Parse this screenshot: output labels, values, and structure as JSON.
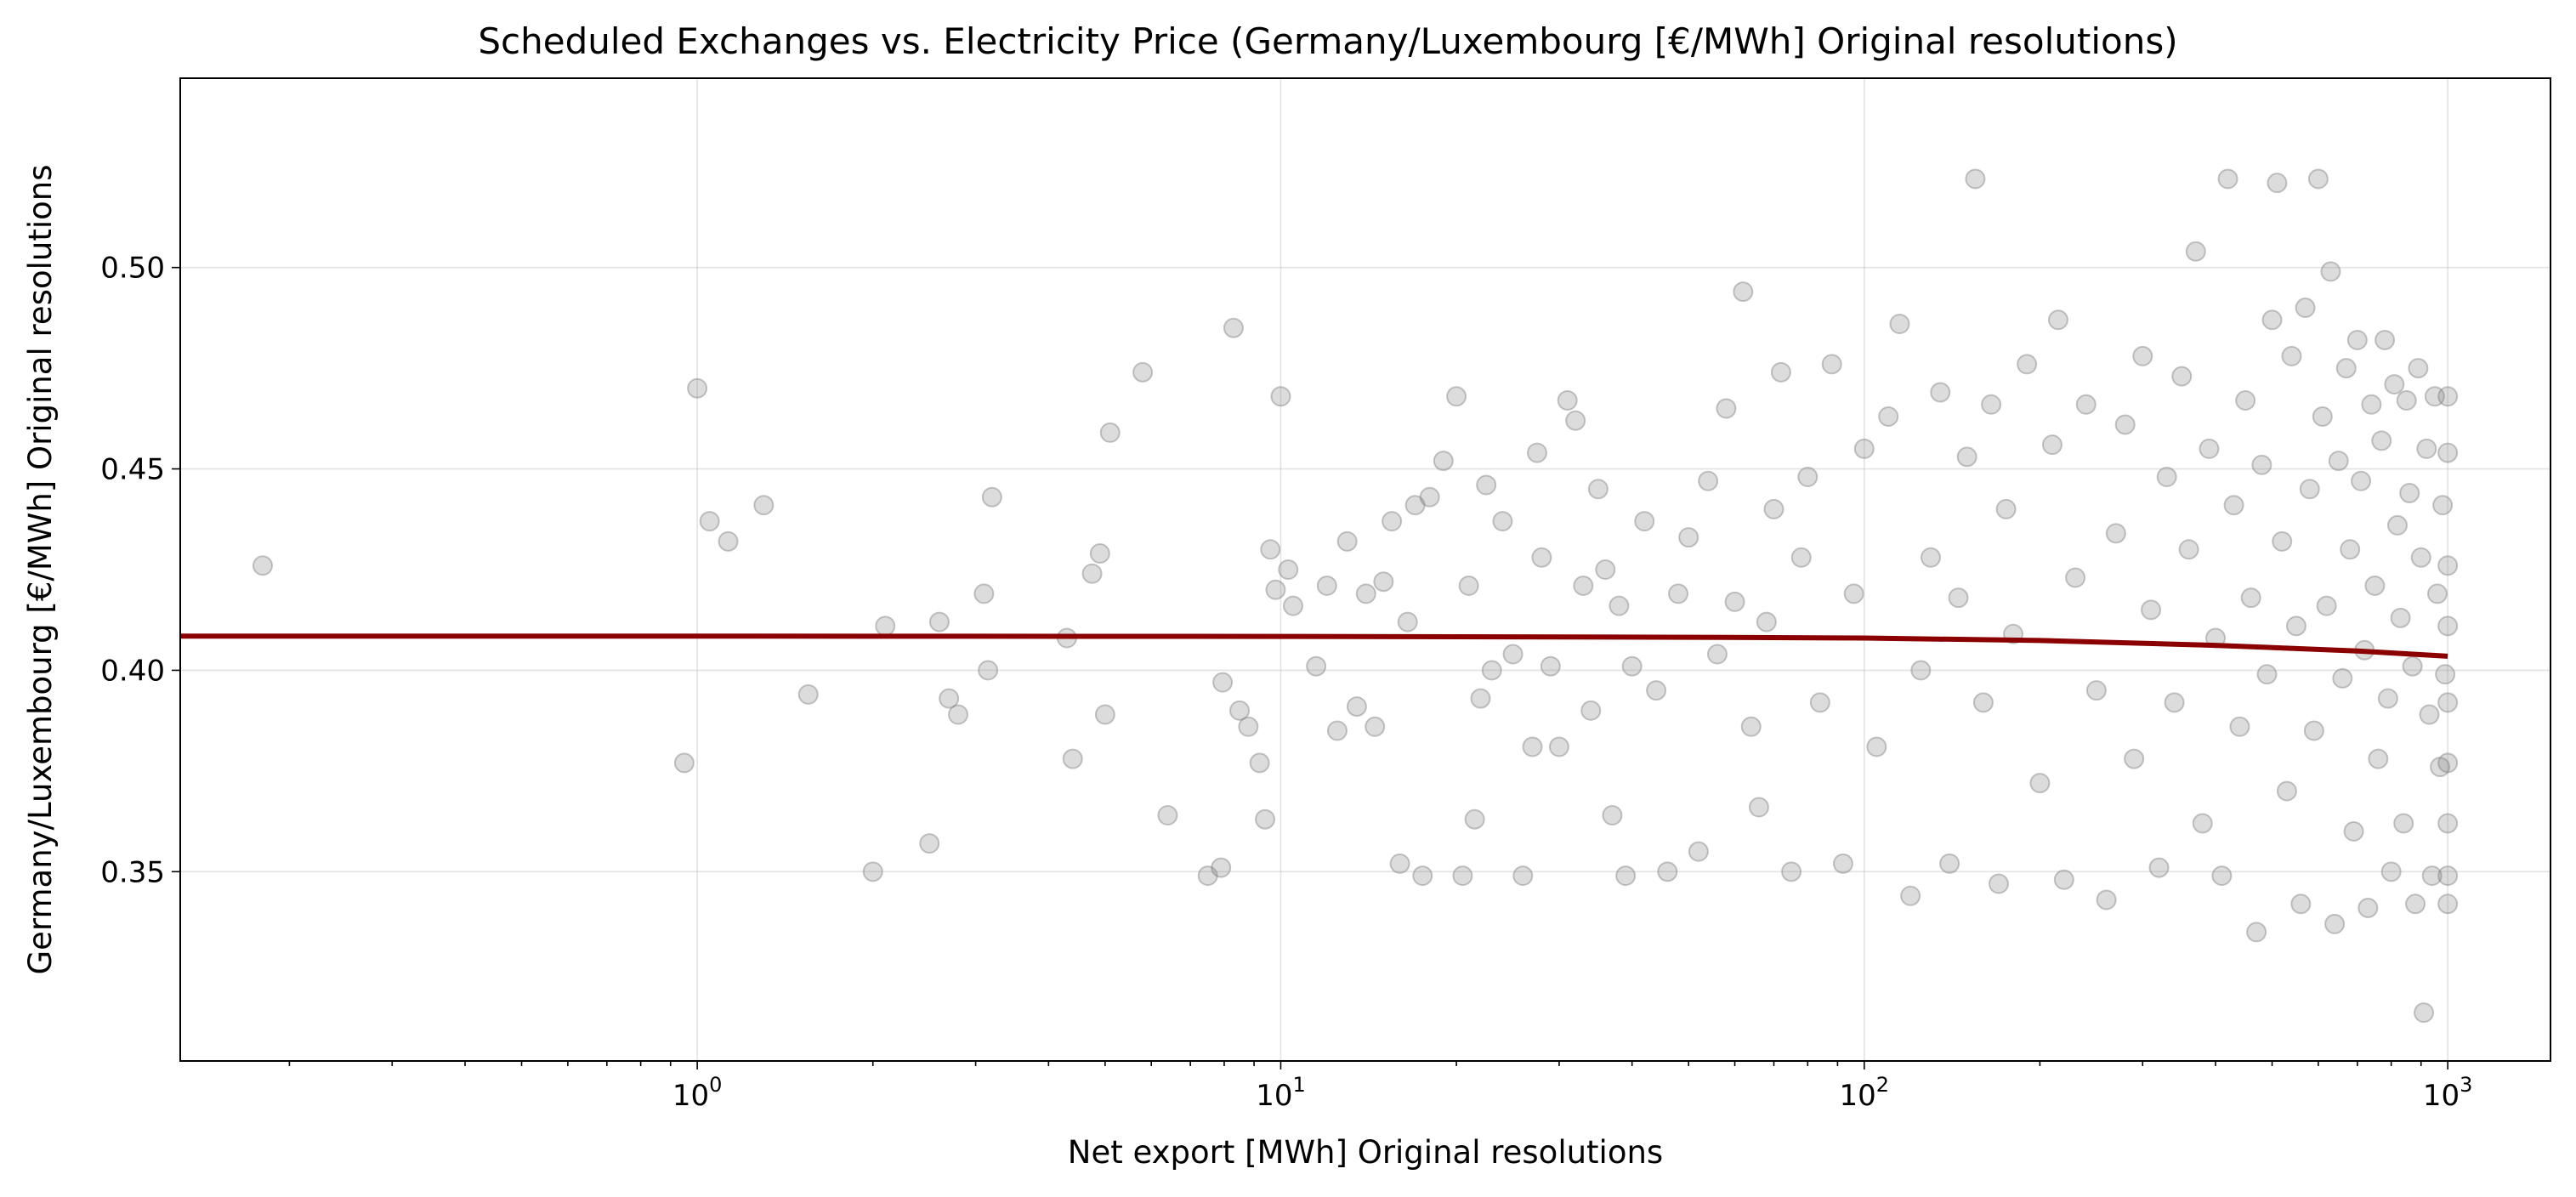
{
  "chart_data": {
    "type": "scatter",
    "title": "Scheduled Exchanges vs. Electricity Price (Germany/Luxembourg [€/MWh] Original resolutions)",
    "xlabel": "Net export [MWh] Original resolutions",
    "ylabel": "Germany/Luxembourg [€/MWh] Original resolutions",
    "xscale": "log",
    "xlim": [
      0.13,
      1500
    ],
    "ylim": [
      0.303,
      0.547
    ],
    "grid": true,
    "legend": "none",
    "x_ticks": [
      {
        "value": 1,
        "base": "10",
        "exp": "0"
      },
      {
        "value": 10,
        "base": "10",
        "exp": "1"
      },
      {
        "value": 100,
        "base": "10",
        "exp": "2"
      },
      {
        "value": 1000,
        "base": "10",
        "exp": "3"
      }
    ],
    "y_ticks": [
      {
        "value": 0.35,
        "label": "0.35"
      },
      {
        "value": 0.4,
        "label": "0.40"
      },
      {
        "value": 0.45,
        "label": "0.45"
      },
      {
        "value": 0.5,
        "label": "0.50"
      }
    ],
    "colors": {
      "points": "#808080",
      "trend": "#8b0000"
    },
    "series": [
      {
        "kind": "points",
        "points": [
          [
            0.18,
            0.426
          ],
          [
            0.95,
            0.377
          ],
          [
            1.0,
            0.47
          ],
          [
            1.05,
            0.437
          ],
          [
            1.13,
            0.432
          ],
          [
            1.3,
            0.441
          ],
          [
            1.55,
            0.394
          ],
          [
            2.0,
            0.35
          ],
          [
            2.1,
            0.411
          ],
          [
            2.5,
            0.357
          ],
          [
            2.6,
            0.412
          ],
          [
            2.7,
            0.393
          ],
          [
            2.8,
            0.389
          ],
          [
            3.1,
            0.419
          ],
          [
            3.15,
            0.4
          ],
          [
            3.2,
            0.443
          ],
          [
            4.3,
            0.408
          ],
          [
            4.4,
            0.378
          ],
          [
            4.75,
            0.424
          ],
          [
            4.9,
            0.429
          ],
          [
            5.0,
            0.389
          ],
          [
            5.1,
            0.459
          ],
          [
            5.8,
            0.474
          ],
          [
            6.4,
            0.364
          ],
          [
            7.5,
            0.349
          ],
          [
            7.9,
            0.351
          ],
          [
            7.95,
            0.397
          ],
          [
            8.3,
            0.485
          ],
          [
            8.5,
            0.39
          ],
          [
            8.8,
            0.386
          ],
          [
            9.2,
            0.377
          ],
          [
            9.4,
            0.363
          ],
          [
            9.6,
            0.43
          ],
          [
            9.8,
            0.42
          ],
          [
            10.0,
            0.468
          ],
          [
            10.3,
            0.425
          ],
          [
            10.5,
            0.416
          ],
          [
            11.5,
            0.401
          ],
          [
            12.0,
            0.421
          ],
          [
            12.5,
            0.385
          ],
          [
            13.0,
            0.432
          ],
          [
            13.5,
            0.391
          ],
          [
            14.0,
            0.419
          ],
          [
            14.5,
            0.386
          ],
          [
            15.0,
            0.422
          ],
          [
            15.5,
            0.437
          ],
          [
            16.0,
            0.352
          ],
          [
            16.5,
            0.412
          ],
          [
            17.0,
            0.441
          ],
          [
            17.5,
            0.349
          ],
          [
            18.0,
            0.443
          ],
          [
            19.0,
            0.452
          ],
          [
            20.0,
            0.468
          ],
          [
            20.5,
            0.349
          ],
          [
            21.0,
            0.421
          ],
          [
            21.5,
            0.363
          ],
          [
            22.0,
            0.393
          ],
          [
            22.5,
            0.446
          ],
          [
            23.0,
            0.4
          ],
          [
            24.0,
            0.437
          ],
          [
            25.0,
            0.404
          ],
          [
            26.0,
            0.349
          ],
          [
            27.0,
            0.381
          ],
          [
            27.5,
            0.454
          ],
          [
            28.0,
            0.428
          ],
          [
            29.0,
            0.401
          ],
          [
            30.0,
            0.381
          ],
          [
            31.0,
            0.467
          ],
          [
            32.0,
            0.462
          ],
          [
            33.0,
            0.421
          ],
          [
            34.0,
            0.39
          ],
          [
            35.0,
            0.445
          ],
          [
            36.0,
            0.425
          ],
          [
            37.0,
            0.364
          ],
          [
            38.0,
            0.416
          ],
          [
            39.0,
            0.349
          ],
          [
            40.0,
            0.401
          ],
          [
            42.0,
            0.437
          ],
          [
            44.0,
            0.395
          ],
          [
            46.0,
            0.35
          ],
          [
            48.0,
            0.419
          ],
          [
            50.0,
            0.433
          ],
          [
            52.0,
            0.355
          ],
          [
            54.0,
            0.447
          ],
          [
            56.0,
            0.404
          ],
          [
            58.0,
            0.465
          ],
          [
            60.0,
            0.417
          ],
          [
            62.0,
            0.494
          ],
          [
            64.0,
            0.386
          ],
          [
            66.0,
            0.366
          ],
          [
            68.0,
            0.412
          ],
          [
            70.0,
            0.44
          ],
          [
            72.0,
            0.474
          ],
          [
            75.0,
            0.35
          ],
          [
            78.0,
            0.428
          ],
          [
            80.0,
            0.448
          ],
          [
            84.0,
            0.392
          ],
          [
            88.0,
            0.476
          ],
          [
            92.0,
            0.352
          ],
          [
            96.0,
            0.419
          ],
          [
            100.0,
            0.455
          ],
          [
            105.0,
            0.381
          ],
          [
            110.0,
            0.463
          ],
          [
            115.0,
            0.486
          ],
          [
            120.0,
            0.344
          ],
          [
            125.0,
            0.4
          ],
          [
            130.0,
            0.428
          ],
          [
            135.0,
            0.469
          ],
          [
            140.0,
            0.352
          ],
          [
            145.0,
            0.418
          ],
          [
            150.0,
            0.453
          ],
          [
            155.0,
            0.522
          ],
          [
            160.0,
            0.392
          ],
          [
            165.0,
            0.466
          ],
          [
            170.0,
            0.347
          ],
          [
            175.0,
            0.44
          ],
          [
            180.0,
            0.409
          ],
          [
            190.0,
            0.476
          ],
          [
            200.0,
            0.372
          ],
          [
            210.0,
            0.456
          ],
          [
            215.0,
            0.487
          ],
          [
            220.0,
            0.348
          ],
          [
            230.0,
            0.423
          ],
          [
            240.0,
            0.466
          ],
          [
            250.0,
            0.395
          ],
          [
            260.0,
            0.343
          ],
          [
            270.0,
            0.434
          ],
          [
            280.0,
            0.461
          ],
          [
            290.0,
            0.378
          ],
          [
            300.0,
            0.478
          ],
          [
            310.0,
            0.415
          ],
          [
            320.0,
            0.351
          ],
          [
            330.0,
            0.448
          ],
          [
            340.0,
            0.392
          ],
          [
            350.0,
            0.473
          ],
          [
            360.0,
            0.43
          ],
          [
            370.0,
            0.504
          ],
          [
            380.0,
            0.362
          ],
          [
            390.0,
            0.455
          ],
          [
            400.0,
            0.408
          ],
          [
            410.0,
            0.349
          ],
          [
            420.0,
            0.522
          ],
          [
            430.0,
            0.441
          ],
          [
            440.0,
            0.386
          ],
          [
            450.0,
            0.467
          ],
          [
            460.0,
            0.418
          ],
          [
            470.0,
            0.335
          ],
          [
            480.0,
            0.451
          ],
          [
            490.0,
            0.399
          ],
          [
            500.0,
            0.487
          ],
          [
            510.0,
            0.521
          ],
          [
            520.0,
            0.432
          ],
          [
            530.0,
            0.37
          ],
          [
            540.0,
            0.478
          ],
          [
            550.0,
            0.411
          ],
          [
            560.0,
            0.342
          ],
          [
            570.0,
            0.49
          ],
          [
            580.0,
            0.445
          ],
          [
            590.0,
            0.385
          ],
          [
            600.0,
            0.522
          ],
          [
            610.0,
            0.463
          ],
          [
            620.0,
            0.416
          ],
          [
            630.0,
            0.499
          ],
          [
            640.0,
            0.337
          ],
          [
            650.0,
            0.452
          ],
          [
            660.0,
            0.398
          ],
          [
            670.0,
            0.475
          ],
          [
            680.0,
            0.43
          ],
          [
            690.0,
            0.36
          ],
          [
            700.0,
            0.482
          ],
          [
            710.0,
            0.447
          ],
          [
            720.0,
            0.405
          ],
          [
            730.0,
            0.341
          ],
          [
            740.0,
            0.466
          ],
          [
            750.0,
            0.421
          ],
          [
            760.0,
            0.378
          ],
          [
            770.0,
            0.457
          ],
          [
            780.0,
            0.482
          ],
          [
            790.0,
            0.393
          ],
          [
            800.0,
            0.35
          ],
          [
            810.0,
            0.471
          ],
          [
            820.0,
            0.436
          ],
          [
            830.0,
            0.413
          ],
          [
            840.0,
            0.362
          ],
          [
            850.0,
            0.467
          ],
          [
            860.0,
            0.444
          ],
          [
            870.0,
            0.401
          ],
          [
            880.0,
            0.342
          ],
          [
            890.0,
            0.475
          ],
          [
            900.0,
            0.428
          ],
          [
            910.0,
            0.315
          ],
          [
            920.0,
            0.455
          ],
          [
            930.0,
            0.389
          ],
          [
            940.0,
            0.349
          ],
          [
            950.0,
            0.468
          ],
          [
            960.0,
            0.419
          ],
          [
            970.0,
            0.376
          ],
          [
            980.0,
            0.441
          ],
          [
            990.0,
            0.399
          ],
          [
            1000.0,
            0.468
          ],
          [
            1000.0,
            0.454
          ],
          [
            1000.0,
            0.426
          ],
          [
            1000.0,
            0.411
          ],
          [
            1000.0,
            0.392
          ],
          [
            1000.0,
            0.377
          ],
          [
            1000.0,
            0.362
          ],
          [
            1000.0,
            0.349
          ],
          [
            1000.0,
            0.342
          ]
        ]
      },
      {
        "kind": "trend",
        "points": [
          [
            0.13,
            0.4085
          ],
          [
            1,
            0.4085
          ],
          [
            10,
            0.4084
          ],
          [
            50,
            0.4082
          ],
          [
            100,
            0.408
          ],
          [
            200,
            0.4074
          ],
          [
            400,
            0.4062
          ],
          [
            700,
            0.4048
          ],
          [
            1000,
            0.4035
          ]
        ]
      }
    ]
  }
}
